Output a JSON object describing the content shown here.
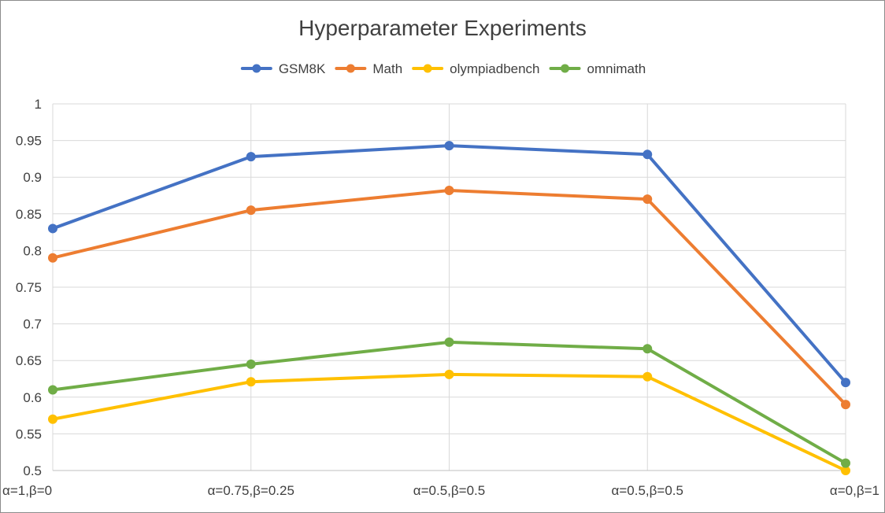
{
  "chart_data": {
    "type": "line",
    "title": "Hyperparameter Experiments",
    "xlabel": "",
    "ylabel": "",
    "categories": [
      "α=1,β=0",
      "α=0.75,β=0.25",
      "α=0.5,β=0.5",
      "α=0.5,β=0.5",
      "α=0,β=1"
    ],
    "ylim": [
      0.5,
      1
    ],
    "yticks": [
      "0.5",
      "0.55",
      "0.6",
      "0.65",
      "0.7",
      "0.75",
      "0.8",
      "0.85",
      "0.9",
      "0.95",
      "1"
    ],
    "grid": true,
    "legend_position": "top",
    "series": [
      {
        "name": "GSM8K",
        "color": "#4472C4",
        "values": [
          0.83,
          0.928,
          0.943,
          0.931,
          0.62
        ]
      },
      {
        "name": "Math",
        "color": "#ED7D31",
        "values": [
          0.79,
          0.855,
          0.882,
          0.87,
          0.59
        ]
      },
      {
        "name": "olympiadbench",
        "color": "#FFC000",
        "values": [
          0.57,
          0.621,
          0.631,
          0.628,
          0.5
        ]
      },
      {
        "name": "omnimath",
        "color": "#70AD47",
        "values": [
          0.61,
          0.645,
          0.675,
          0.666,
          0.51
        ]
      }
    ]
  }
}
